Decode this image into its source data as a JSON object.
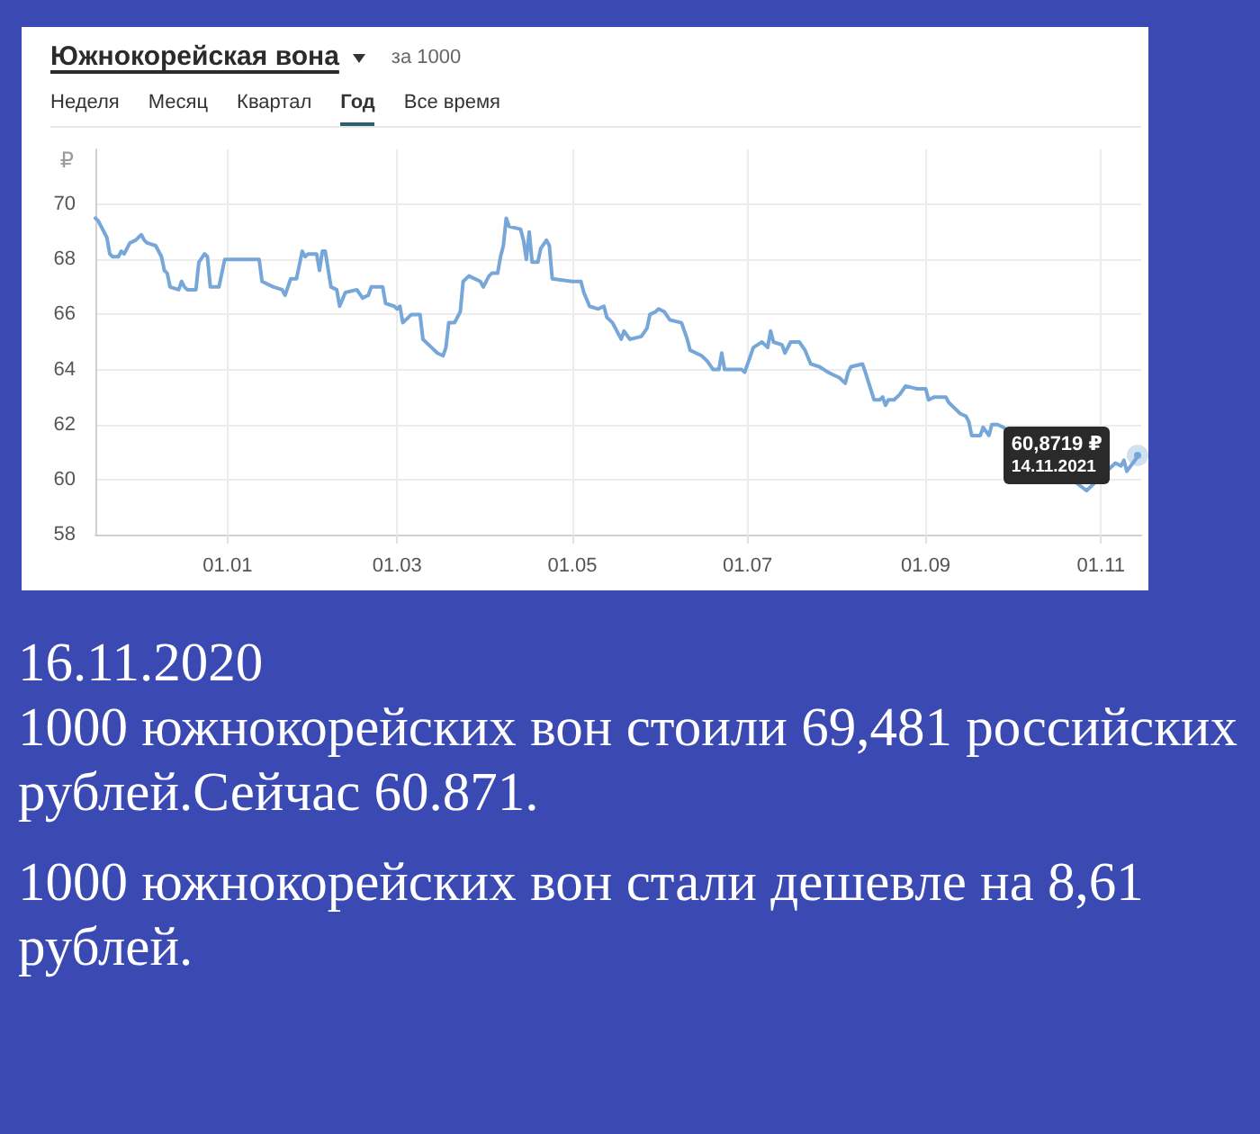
{
  "chart_data": {
    "type": "line",
    "title": "Южнокорейская вона",
    "subtitle": "за 1000",
    "ylabel": "₽",
    "x": [
      "2020-11-16",
      "2020-11-17",
      "2020-11-19",
      "2020-11-20",
      "2020-11-21",
      "2020-11-22",
      "2020-11-24",
      "2020-11-25",
      "2020-11-26",
      "2020-11-28",
      "2020-11-30",
      "2020-12-02",
      "2020-12-03",
      "2020-12-04",
      "2020-12-07",
      "2020-12-09",
      "2020-12-10",
      "2020-12-11",
      "2020-12-12",
      "2020-12-15",
      "2020-12-16",
      "2020-12-17",
      "2020-12-18",
      "2020-12-21",
      "2020-12-22",
      "2020-12-24",
      "2020-12-25",
      "2020-12-26",
      "2020-12-29",
      "2020-12-31",
      "2021-01-12",
      "2021-01-13",
      "2021-01-17",
      "2021-01-20",
      "2021-01-21",
      "2021-01-23",
      "2021-01-25",
      "2021-01-27",
      "2021-01-28",
      "2021-01-29",
      "2021-02-01",
      "2021-02-02",
      "2021-02-03",
      "2021-02-04",
      "2021-02-06",
      "2021-02-08",
      "2021-02-09",
      "2021-02-11",
      "2021-02-15",
      "2021-02-17",
      "2021-02-19",
      "2021-02-20",
      "2021-02-24",
      "2021-02-25",
      "2021-02-28",
      "2021-03-01",
      "2021-03-02",
      "2021-03-03",
      "2021-03-06",
      "2021-03-09",
      "2021-03-10",
      "2021-03-13",
      "2021-03-15",
      "2021-03-17",
      "2021-03-18",
      "2021-03-19",
      "2021-03-21",
      "2021-03-23",
      "2021-03-24",
      "2021-03-26",
      "2021-03-30",
      "2021-03-31",
      "2021-04-02",
      "2021-04-03",
      "2021-04-05",
      "2021-04-06",
      "2021-04-07",
      "2021-04-08",
      "2021-04-09",
      "2021-04-13",
      "2021-04-14",
      "2021-04-15",
      "2021-04-16",
      "2021-04-17",
      "2021-04-19",
      "2021-04-20",
      "2021-04-22",
      "2021-04-23",
      "2021-04-24",
      "2021-05-01",
      "2021-05-04",
      "2021-05-05",
      "2021-05-07",
      "2021-05-10",
      "2021-05-12",
      "2021-05-13",
      "2021-05-15",
      "2021-05-18",
      "2021-05-19",
      "2021-05-21",
      "2021-05-25",
      "2021-05-27",
      "2021-05-28",
      "2021-05-30",
      "2021-05-31",
      "2021-06-02",
      "2021-06-04",
      "2021-06-08",
      "2021-06-10",
      "2021-06-11",
      "2021-06-15",
      "2021-06-17",
      "2021-06-19",
      "2021-06-21",
      "2021-06-22",
      "2021-06-23",
      "2021-06-25",
      "2021-06-29",
      "2021-06-30",
      "2021-07-02",
      "2021-07-03",
      "2021-07-06",
      "2021-07-08",
      "2021-07-09",
      "2021-07-10",
      "2021-07-13",
      "2021-07-14",
      "2021-07-16",
      "2021-07-19",
      "2021-07-21",
      "2021-07-23",
      "2021-07-26",
      "2021-07-29",
      "2021-07-31",
      "2021-08-02",
      "2021-08-04",
      "2021-08-05",
      "2021-08-06",
      "2021-08-10",
      "2021-08-11",
      "2021-08-14",
      "2021-08-16",
      "2021-08-17",
      "2021-08-18",
      "2021-08-19",
      "2021-08-21",
      "2021-08-23",
      "2021-08-25",
      "2021-08-29",
      "2021-09-01",
      "2021-09-02",
      "2021-09-04",
      "2021-09-08",
      "2021-09-09",
      "2021-09-11",
      "2021-09-13",
      "2021-09-15",
      "2021-09-16",
      "2021-09-17",
      "2021-09-20",
      "2021-09-21",
      "2021-09-23",
      "2021-09-24",
      "2021-09-26",
      "2021-09-28",
      "2021-10-27",
      "2021-11-06",
      "2021-11-08",
      "2021-11-09",
      "2021-11-10",
      "2021-11-14"
    ],
    "values": [
      69.5,
      69.4,
      69.0,
      68.8,
      68.2,
      68.1,
      68.1,
      68.3,
      68.2,
      68.6,
      68.7,
      68.9,
      68.7,
      68.6,
      68.5,
      68.1,
      67.6,
      67.5,
      67.0,
      66.9,
      67.2,
      67.0,
      66.9,
      66.9,
      67.9,
      68.2,
      68.1,
      67.0,
      67.0,
      68.0,
      68.0,
      67.2,
      67.0,
      66.9,
      66.7,
      67.3,
      67.3,
      68.3,
      68.1,
      68.2,
      68.2,
      67.6,
      68.3,
      68.3,
      67.0,
      66.9,
      66.3,
      66.8,
      66.9,
      66.6,
      66.7,
      67.0,
      67.0,
      66.4,
      66.3,
      66.2,
      66.3,
      65.7,
      66.0,
      66.0,
      65.1,
      64.8,
      64.6,
      64.5,
      64.8,
      65.7,
      65.7,
      66.1,
      67.2,
      67.4,
      67.2,
      67.0,
      67.4,
      67.5,
      67.5,
      68.1,
      68.5,
      69.5,
      69.2,
      69.1,
      68.7,
      68.0,
      69.0,
      67.9,
      67.9,
      68.4,
      68.7,
      68.5,
      67.3,
      67.2,
      67.2,
      66.8,
      66.3,
      66.2,
      66.3,
      65.9,
      65.7,
      65.1,
      65.4,
      65.1,
      65.2,
      65.5,
      66.0,
      66.1,
      66.2,
      66.1,
      65.8,
      65.7,
      65.1,
      64.7,
      64.5,
      64.3,
      64.0,
      64.0,
      64.6,
      64.0,
      64.0,
      64.0,
      63.9,
      64.5,
      64.8,
      65.0,
      64.8,
      65.4,
      65.0,
      64.9,
      64.6,
      65.0,
      65.0,
      64.7,
      64.2,
      64.1,
      63.9,
      63.8,
      63.7,
      63.5,
      63.9,
      64.1,
      64.2,
      63.9,
      62.9,
      62.9,
      63.0,
      62.7,
      62.9,
      62.9,
      63.1,
      63.4,
      63.3,
      63.3,
      62.9,
      63.0,
      63.0,
      62.8,
      62.6,
      62.4,
      62.3,
      62.1,
      61.6,
      61.6,
      61.9,
      61.6,
      62.0,
      62.0,
      61.9,
      59.6,
      60.6,
      60.5,
      60.7,
      60.3,
      60.8719
    ],
    "color": "#76a7d8",
    "marker": "none",
    "line_style": "solid",
    "grid": true,
    "xlim": [
      "2020-11-16",
      "2021-11-15"
    ],
    "xticks": [
      {
        "value": "2021-01-01",
        "label": "01.01"
      },
      {
        "value": "2021-03-01",
        "label": "01.03"
      },
      {
        "value": "2021-05-01",
        "label": "01.05"
      },
      {
        "value": "2021-07-01",
        "label": "01.07"
      },
      {
        "value": "2021-09-01",
        "label": "01.09"
      },
      {
        "value": "2021-11-01",
        "label": "01.11"
      }
    ],
    "ylim": [
      58,
      72
    ],
    "yticks": [
      58,
      60,
      62,
      64,
      66,
      68,
      70
    ],
    "annotations": [
      "Неделя",
      "Месяц",
      "Квартал",
      "Год",
      "Все время",
      {
        "text": "60,8719 ₽\n14.11.2021",
        "x": "2021-11-14",
        "y": 60.8719
      },
      "16.11.2020",
      "1000 южнокорейских вон стоили 69,481 российских рублей.Сейчас 60.871.",
      "1000 южнокорейских вон стали дешевле на 8,61 рублей."
    ]
  }
}
